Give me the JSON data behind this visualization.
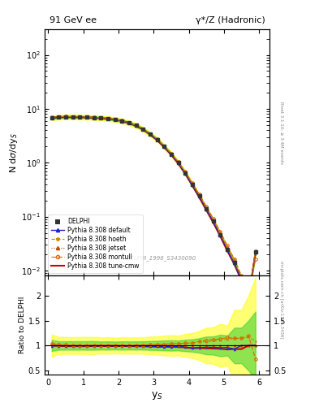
{
  "title_left": "91 GeV ee",
  "title_right": "γ*/Z (Hadronic)",
  "ylabel_main": "N dσ/dy_S",
  "ylabel_ratio": "Ratio to DELPHI",
  "xlabel": "y_S",
  "right_label": "Rivet 3.1.10; ≥ 3.4M events",
  "ref_label": "DELPHI_1996_S3430090",
  "arxiv_label": "mcplots.cern.ch [arXiv:1306.3436]",
  "ylim_main": [
    0.008,
    300
  ],
  "ylim_ratio": [
    0.42,
    2.4
  ],
  "xlim": [
    -0.1,
    6.3
  ],
  "ys_data": [
    0.1,
    0.3,
    0.5,
    0.7,
    0.9,
    1.1,
    1.3,
    1.5,
    1.7,
    1.9,
    2.1,
    2.3,
    2.5,
    2.7,
    2.9,
    3.1,
    3.3,
    3.5,
    3.7,
    3.9,
    4.1,
    4.3,
    4.5,
    4.7,
    4.9,
    5.1,
    5.3,
    5.5,
    5.7,
    5.9
  ],
  "delphi_y": [
    6.8,
    7.0,
    7.1,
    7.1,
    7.05,
    7.0,
    6.9,
    6.8,
    6.6,
    6.35,
    6.0,
    5.5,
    4.9,
    4.2,
    3.4,
    2.7,
    2.0,
    1.45,
    1.0,
    0.65,
    0.4,
    0.24,
    0.14,
    0.082,
    0.046,
    0.025,
    0.014,
    0.007,
    0.003,
    0.022
  ],
  "delphi_yerr": [
    0.15,
    0.12,
    0.12,
    0.12,
    0.12,
    0.12,
    0.12,
    0.11,
    0.11,
    0.1,
    0.1,
    0.09,
    0.08,
    0.07,
    0.06,
    0.05,
    0.04,
    0.03,
    0.02,
    0.015,
    0.01,
    0.007,
    0.005,
    0.003,
    0.002,
    0.001,
    0.001,
    0.0005,
    0.0003,
    0.003
  ],
  "default_y": [
    6.75,
    6.95,
    7.05,
    7.05,
    7.0,
    6.95,
    6.85,
    6.75,
    6.55,
    6.3,
    5.95,
    5.45,
    4.85,
    4.15,
    3.35,
    2.65,
    1.95,
    1.42,
    0.98,
    0.63,
    0.38,
    0.23,
    0.135,
    0.079,
    0.044,
    0.024,
    0.013,
    0.007,
    0.003,
    0.022
  ],
  "hoeth_y": [
    7.1,
    7.2,
    7.2,
    7.15,
    7.1,
    7.05,
    6.95,
    6.85,
    6.65,
    6.4,
    6.05,
    5.55,
    4.95,
    4.25,
    3.45,
    2.75,
    2.05,
    1.5,
    1.04,
    0.68,
    0.42,
    0.26,
    0.15,
    0.09,
    0.051,
    0.028,
    0.016,
    0.008,
    0.0035,
    0.024
  ],
  "jetset_y": [
    6.9,
    7.05,
    7.1,
    7.1,
    7.05,
    7.0,
    6.9,
    6.8,
    6.6,
    6.35,
    6.0,
    5.5,
    4.9,
    4.2,
    3.4,
    2.7,
    2.0,
    1.45,
    1.0,
    0.65,
    0.4,
    0.24,
    0.14,
    0.082,
    0.046,
    0.025,
    0.014,
    0.007,
    0.003,
    0.022
  ],
  "montull_y": [
    7.0,
    7.15,
    7.2,
    7.15,
    7.1,
    7.05,
    6.95,
    6.85,
    6.65,
    6.4,
    6.05,
    5.55,
    4.95,
    4.25,
    3.45,
    2.75,
    2.05,
    1.5,
    1.04,
    0.68,
    0.42,
    0.26,
    0.155,
    0.092,
    0.052,
    0.029,
    0.016,
    0.008,
    0.0036,
    0.016
  ],
  "tunecmw_y": [
    6.8,
    6.95,
    7.0,
    7.0,
    6.95,
    6.9,
    6.82,
    6.72,
    6.52,
    6.27,
    5.93,
    5.43,
    4.83,
    4.13,
    3.33,
    2.63,
    1.95,
    1.41,
    0.97,
    0.625,
    0.378,
    0.228,
    0.132,
    0.077,
    0.043,
    0.023,
    0.013,
    0.0065,
    0.003,
    0.022
  ],
  "colors": {
    "delphi": "#333333",
    "default": "#2222cc",
    "hoeth": "#cc8800",
    "jetset": "#cc4400",
    "montull": "#dd6600",
    "tunecmw": "#cc0000"
  },
  "band_yellow": {
    "alpha": 0.55,
    "color": "#ffff00"
  },
  "band_green": {
    "alpha": 0.55,
    "color": "#33cc33"
  }
}
